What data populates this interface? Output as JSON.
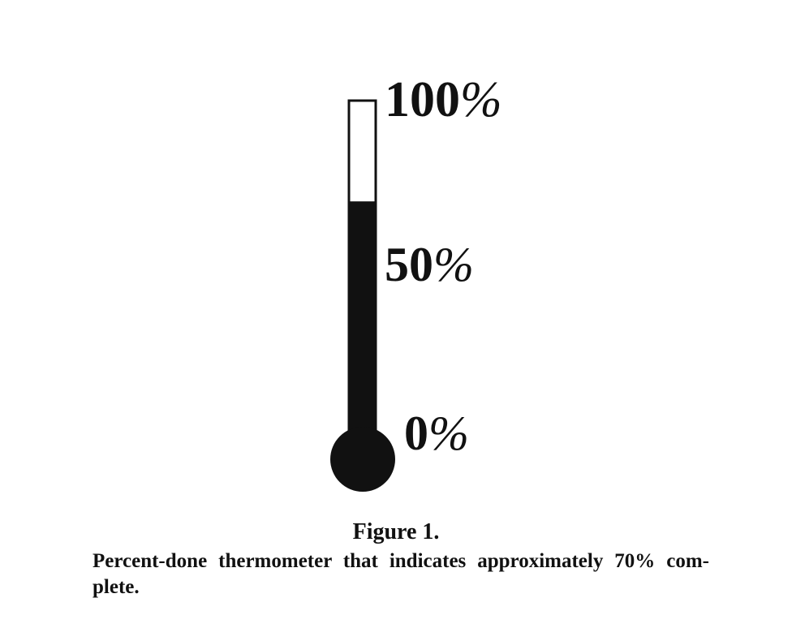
{
  "figure": {
    "title": "Figure 1.",
    "caption": "Percent-done thermometer that indicates approximately 70% com-plete."
  },
  "thermometer": {
    "progress_fraction": 0.7,
    "fill_color": "#111111",
    "empty_color": "#ffffff",
    "labels": {
      "top_number": "100",
      "middle_number": "50",
      "bottom_number": "0",
      "unit": "%"
    }
  }
}
